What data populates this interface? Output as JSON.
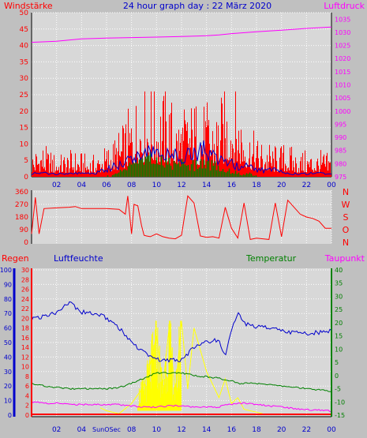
{
  "page_title": "24 hour graph day : 22 März 2020",
  "colors": {
    "background": "#c0c0c0",
    "plot_bg": "#d8d8d8",
    "red": "#ff0000",
    "blue": "#0000cc",
    "green": "#008000",
    "magenta": "#ff00ff",
    "yellow": "#ffff00",
    "white": "#ffffff",
    "grid": "#ffffff"
  },
  "x_tick_labels": [
    "02",
    "04",
    "06",
    "08",
    "10",
    "12",
    "14",
    "16",
    "18",
    "20",
    "22",
    "00"
  ],
  "bottom_x_tick_labels": [
    "02",
    "04",
    "SunOSec",
    "08",
    "10",
    "12",
    "14",
    "16",
    "18",
    "20",
    "22",
    "00"
  ],
  "chart_data": [
    {
      "type": "bar",
      "title": "24 hour graph day : 22 März 2020",
      "left_axis_label": "Windstärke",
      "right_axis_label": "Luftdruck",
      "left_ticks": [
        "0",
        "5",
        "10",
        "15",
        "20",
        "25",
        "30",
        "35",
        "40",
        "45",
        "50"
      ],
      "right_ticks": [
        "975",
        "980",
        "985",
        "990",
        "995",
        "1000",
        "1005",
        "1010",
        "1015",
        "1020",
        "1025",
        "1030",
        "1035"
      ],
      "ylim_left": [
        0,
        50
      ],
      "ylim_right": [
        975,
        1037.5
      ],
      "pressure_hours": [
        0,
        2,
        4,
        6,
        8,
        10,
        12,
        14,
        15,
        16,
        18,
        20,
        22,
        24
      ],
      "pressure_values": [
        1026.2,
        1026.6,
        1027.5,
        1027.8,
        1028.0,
        1028.2,
        1028.4,
        1028.7,
        1029.0,
        1029.5,
        1030.2,
        1030.8,
        1031.5,
        1032.0
      ],
      "wind_gust_envelope": [
        6,
        8,
        6,
        5,
        6,
        6,
        5,
        5,
        7,
        9,
        12,
        17,
        21,
        22,
        20,
        20,
        15,
        17,
        18,
        17,
        16,
        19,
        22,
        17,
        11,
        9,
        8,
        7,
        8,
        6,
        6,
        6,
        6,
        5
      ],
      "wind_avg_envelope": [
        1,
        1,
        1,
        1,
        1,
        1,
        1,
        1,
        2,
        3,
        4,
        6,
        7,
        8,
        7,
        7,
        6,
        7,
        7,
        8,
        6,
        5,
        4,
        3,
        3,
        2,
        2,
        2,
        1,
        1,
        1,
        1,
        1,
        1
      ],
      "wind_green_envelope": [
        0,
        0,
        0,
        0,
        0,
        0,
        0,
        0,
        0,
        1,
        2,
        4,
        5,
        6,
        5,
        5,
        4,
        5,
        4,
        5,
        4,
        3,
        2,
        1,
        1,
        0,
        0,
        0,
        0,
        0,
        0,
        0,
        0,
        0
      ]
    },
    {
      "type": "line",
      "left_ticks": [
        "0",
        "90",
        "180",
        "270",
        "360"
      ],
      "right_ticks": [
        "N",
        "W",
        "S",
        "O",
        "N"
      ],
      "ylim": [
        0,
        360
      ],
      "hours": [
        0,
        0.3,
        0.6,
        1,
        2,
        3,
        3.5,
        4,
        5,
        6,
        7,
        7.5,
        7.7,
        8,
        8.2,
        8.5,
        8.8,
        9,
        9.2,
        9.5,
        10,
        10.5,
        11,
        11.5,
        12,
        12.5,
        13,
        13.5,
        14,
        14.5,
        15,
        15.5,
        16,
        16.5,
        17,
        17.5,
        18,
        18.5,
        19,
        19.5,
        20,
        20.5,
        21,
        21.5,
        22,
        22.5,
        23,
        23.5,
        24
      ],
      "direction": [
        60,
        320,
        60,
        240,
        245,
        250,
        255,
        240,
        240,
        240,
        235,
        200,
        330,
        60,
        270,
        260,
        120,
        50,
        45,
        40,
        60,
        40,
        30,
        25,
        50,
        330,
        280,
        45,
        35,
        40,
        30,
        250,
        100,
        30,
        280,
        20,
        30,
        25,
        20,
        280,
        40,
        300,
        250,
        200,
        180,
        170,
        150,
        100,
        100
      ]
    },
    {
      "type": "line",
      "left_axis_label": "Regen",
      "humidity_label": "Luftfeuchte",
      "temperature_label": "Temperatur",
      "dewpoint_label": "Taupunkt",
      "rain_ticks": [
        "0",
        "10",
        "20",
        "30",
        "40",
        "50",
        "60",
        "70",
        "80",
        "90",
        "100"
      ],
      "humidity_ticks": [
        "0",
        "2",
        "4",
        "6",
        "8",
        "10",
        "12",
        "14",
        "16",
        "18",
        "20",
        "22",
        "24",
        "26",
        "28",
        "30"
      ],
      "temp_ticks": [
        "-15",
        "-10",
        "-5",
        "0",
        "5",
        "10",
        "15",
        "20",
        "25",
        "30",
        "35",
        "40"
      ],
      "ylim_pct": [
        0,
        100
      ],
      "ylim_temp": [
        -15,
        40
      ],
      "hours": [
        0,
        1,
        2,
        3,
        4,
        5,
        6,
        7,
        8,
        9,
        10,
        11,
        12,
        13,
        14,
        15,
        15.5,
        16,
        16.5,
        17,
        18,
        19,
        20,
        21,
        22,
        23,
        24
      ],
      "humidity": [
        66,
        68,
        71,
        78,
        71,
        70,
        67,
        60,
        50,
        43,
        38,
        38,
        38,
        47,
        50,
        52,
        40,
        58,
        70,
        63,
        61,
        60,
        58,
        57,
        56,
        57,
        58
      ],
      "temperature": [
        -3,
        -4,
        -4.5,
        -5,
        -5,
        -5,
        -5,
        -4.5,
        -3,
        -1,
        1,
        1,
        1,
        0,
        -0.5,
        -1,
        -2,
        -2,
        -3,
        -3,
        -3,
        -3.5,
        -4,
        -4.5,
        -5,
        -5.5,
        -6
      ],
      "dewpoint": [
        -10,
        -10.5,
        -10.5,
        -11,
        -11,
        -11,
        -11,
        -11,
        -11.5,
        -12,
        -12,
        -11.5,
        -11.5,
        -12,
        -12,
        -12,
        -11,
        -11,
        -10.5,
        -10.5,
        -11,
        -11.5,
        -12,
        -12.5,
        -13,
        -13,
        -13.5
      ],
      "rain": [
        0,
        0,
        0,
        0,
        0,
        0,
        0,
        0,
        0,
        0,
        0,
        0,
        0,
        0,
        0,
        0,
        0,
        0,
        0,
        0,
        0,
        0,
        0,
        0,
        0,
        0,
        0
      ],
      "sun_hours": [
        5.5,
        6,
        7,
        8,
        9,
        9.5,
        10,
        10.5,
        11,
        11.5,
        12,
        12.5,
        13,
        14,
        15,
        15.5,
        16,
        16.5,
        17,
        18,
        18.5
      ],
      "sun_values": [
        5,
        3,
        1,
        8,
        20,
        35,
        55,
        20,
        60,
        15,
        65,
        18,
        60,
        30,
        12,
        25,
        8,
        12,
        4,
        2,
        1
      ]
    }
  ]
}
